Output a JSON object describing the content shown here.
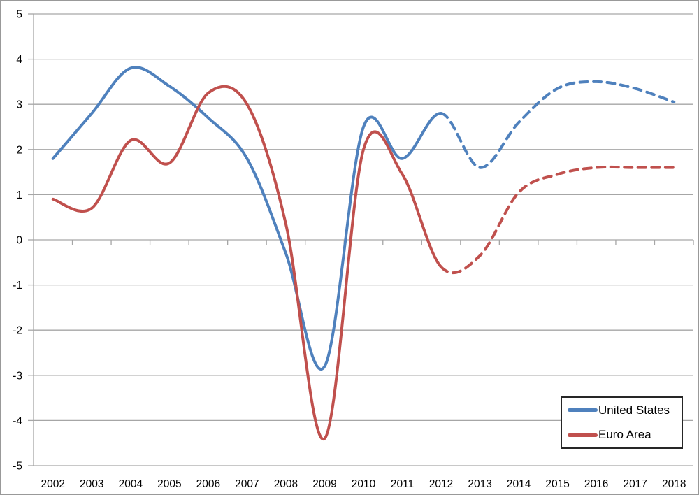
{
  "chart_data": {
    "type": "line",
    "title": "",
    "xlabel": "",
    "ylabel": "",
    "categories": [
      "2002",
      "2003",
      "2004",
      "2005",
      "2006",
      "2007",
      "2008",
      "2009",
      "2010",
      "2011",
      "2012",
      "2013",
      "2014",
      "2015",
      "2016",
      "2017",
      "2018"
    ],
    "series": [
      {
        "name": "United States",
        "color": "#4F81BD",
        "solid_through": "2012",
        "values": [
          1.8,
          2.8,
          3.8,
          3.4,
          2.7,
          1.8,
          -0.3,
          -2.8,
          2.5,
          1.8,
          2.8,
          1.6,
          2.6,
          3.35,
          3.5,
          3.35,
          3.05
        ]
      },
      {
        "name": "Euro Area",
        "color": "#C0504D",
        "solid_through": "2012",
        "values": [
          0.9,
          0.7,
          2.2,
          1.7,
          3.25,
          3.0,
          0.35,
          -4.4,
          2.0,
          1.45,
          -0.6,
          -0.35,
          1.05,
          1.45,
          1.6,
          1.6,
          1.6
        ]
      }
    ],
    "ylim": [
      -5,
      5
    ],
    "yticks": [
      -5,
      -4,
      -3,
      -2,
      -1,
      0,
      1,
      2,
      3,
      4,
      5
    ],
    "ytick_labels": [
      "-5",
      "-4",
      "-3",
      "-2",
      "-1",
      "0",
      "1",
      "2",
      "3",
      "4",
      "5"
    ],
    "grid": true,
    "line_smoothing": true,
    "dashed_segments_meaning": "values after 2012 drawn dashed",
    "legend_position": "bottom-right"
  },
  "legend": {
    "items": [
      {
        "label": "United States",
        "color": "#4F81BD"
      },
      {
        "label": "Euro Area",
        "color": "#C0504D"
      }
    ]
  },
  "colors": {
    "us_line": "#4F81BD",
    "euro_line": "#C0504D",
    "gridline": "#A6A6A6",
    "axis_line": "#A6A6A6",
    "axis_text": "#000000",
    "frame_border": "#999999",
    "legend_border": "#262626",
    "background": "#FFFFFF"
  }
}
